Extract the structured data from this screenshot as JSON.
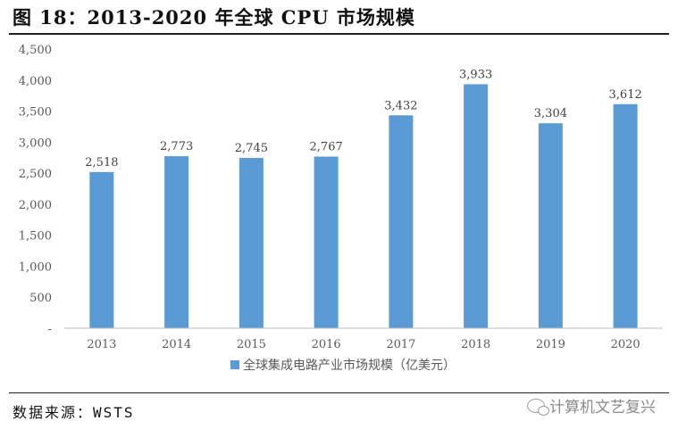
{
  "header": {
    "title": "图 18：2013-2020 年全球 CPU 市场规模"
  },
  "footer": {
    "source": "数据来源：WSTS",
    "watermark": "计算机文艺复兴"
  },
  "colors": {
    "bar": "#5b9bd5",
    "axis": "#bfbfbf",
    "text": "#595959"
  },
  "chart_data": {
    "type": "bar",
    "title": "",
    "categories": [
      "2013",
      "2014",
      "2015",
      "2016",
      "2017",
      "2018",
      "2019",
      "2020"
    ],
    "values": [
      2518,
      2773,
      2745,
      2767,
      3432,
      3933,
      3304,
      3612
    ],
    "value_labels": [
      "2,518",
      "2,773",
      "2,745",
      "2,767",
      "3,432",
      "3,933",
      "3,304",
      "3,612"
    ],
    "series": [
      {
        "name": "全球集成电路产业市场规模（亿美元）",
        "values": [
          2518,
          2773,
          2745,
          2767,
          3432,
          3933,
          3304,
          3612
        ]
      }
    ],
    "ylim": [
      0,
      4500
    ],
    "yticks": [
      0,
      500,
      1000,
      1500,
      2000,
      2500,
      3000,
      3500,
      4000,
      4500
    ],
    "ytick_labels": [
      "-",
      "500",
      "1,000",
      "1,500",
      "2,000",
      "2,500",
      "3,000",
      "3,500",
      "4,000",
      "4,500"
    ],
    "xlabel": "",
    "ylabel": "",
    "grid": false,
    "legend_position": "bottom-center"
  }
}
